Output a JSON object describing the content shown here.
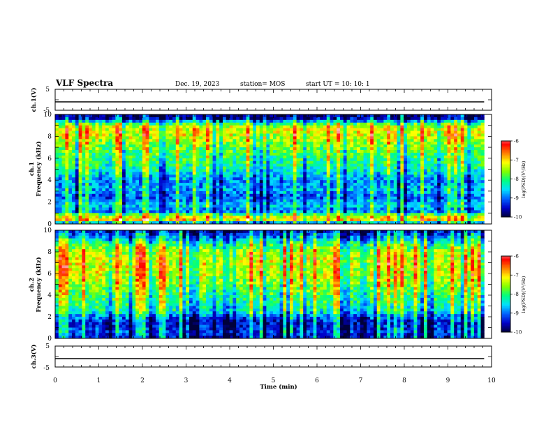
{
  "header": {
    "title": "VLF Spectra",
    "date": "Dec. 19, 2023",
    "station": "station= MOS",
    "start": "start  UT  =    10: 10: 1"
  },
  "chart_data": {
    "type": "heatmap",
    "xlabel": "Time  (min)",
    "x_ticks": [
      "0",
      "1",
      "2",
      "3",
      "4",
      "5",
      "6",
      "7",
      "8",
      "9",
      "10"
    ],
    "xlim": [
      0,
      10
    ],
    "data_end_min": 9.83,
    "panels": [
      {
        "id": "ch1-voltage",
        "type": "line",
        "ylabel": "ch.1(V)",
        "ylim": [
          -5,
          5
        ],
        "y_ticks": [
          "5",
          "-5"
        ],
        "trace_level_v": -1.0
      },
      {
        "id": "ch1-spectrogram",
        "type": "heatmap",
        "ylabel": "ch.1\nFrequency  (kHz)",
        "ylabel_lines": [
          "ch.1",
          "Frequency  (kHz)"
        ],
        "ylim": [
          0,
          10
        ],
        "y_ticks": [
          "0",
          "2",
          "4",
          "6",
          "8",
          "10"
        ],
        "profile_khz_to_level": [
          [
            0.0,
            0.15
          ],
          [
            0.4,
            0.72
          ],
          [
            0.8,
            0.55
          ],
          [
            1.2,
            0.22
          ],
          [
            1.6,
            0.34
          ],
          [
            2.0,
            0.28
          ],
          [
            2.5,
            0.2
          ],
          [
            3.0,
            0.3
          ],
          [
            4.0,
            0.26
          ],
          [
            5.0,
            0.4
          ],
          [
            6.0,
            0.46
          ],
          [
            7.0,
            0.52
          ],
          [
            7.5,
            0.58
          ],
          [
            8.0,
            0.62
          ],
          [
            8.5,
            0.66
          ],
          [
            9.0,
            0.58
          ],
          [
            9.3,
            0.35
          ],
          [
            9.6,
            0.1
          ],
          [
            10.0,
            0.02
          ]
        ],
        "colorbar": {
          "label": "log(PSD)(V²/Hz)",
          "ticks": [
            "-6",
            "-7",
            "-8",
            "-9",
            "-10"
          ],
          "range": [
            -10,
            -6
          ]
        }
      },
      {
        "id": "ch2-spectrogram",
        "type": "heatmap",
        "ylabel": "ch.2\nFrequency  (kHz)",
        "ylabel_lines": [
          "ch.2",
          "Frequency  (kHz)"
        ],
        "ylim": [
          0,
          10
        ],
        "y_ticks": [
          "0",
          "2",
          "4",
          "6",
          "8",
          "10"
        ],
        "profile_khz_to_level": [
          [
            0.0,
            0.12
          ],
          [
            0.5,
            0.18
          ],
          [
            1.0,
            0.16
          ],
          [
            1.5,
            0.14
          ],
          [
            2.0,
            0.22
          ],
          [
            2.5,
            0.38
          ],
          [
            3.0,
            0.42
          ],
          [
            4.0,
            0.48
          ],
          [
            5.0,
            0.56
          ],
          [
            6.0,
            0.62
          ],
          [
            7.0,
            0.64
          ],
          [
            8.0,
            0.6
          ],
          [
            8.6,
            0.5
          ],
          [
            9.0,
            0.38
          ],
          [
            9.5,
            0.22
          ],
          [
            10.0,
            0.1
          ]
        ],
        "colorbar": {
          "label": "log(PSD)(V²/Hz)",
          "ticks": [
            "-6",
            "-7",
            "-8",
            "-9",
            "-10"
          ],
          "range": [
            -10,
            -6
          ]
        }
      },
      {
        "id": "ch3-voltage",
        "type": "line",
        "ylabel": "ch.3(V)",
        "ylim": [
          -5,
          5
        ],
        "y_ticks": [
          "5",
          "-5"
        ],
        "trace_level_v": -1.0
      }
    ],
    "colormap": [
      "#00003a",
      "#0000c8",
      "#0060ff",
      "#00e0ff",
      "#00ff80",
      "#80ff00",
      "#ffff00",
      "#ff8000",
      "#ff0000",
      "#ffffff"
    ],
    "grid": false,
    "legend": "colorbars right"
  }
}
